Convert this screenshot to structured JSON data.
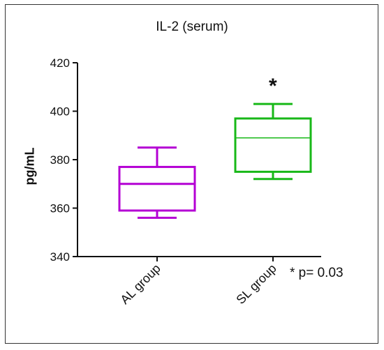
{
  "title": "IL-2 (serum)",
  "chart_data": {
    "type": "box",
    "title": "IL-2 (serum)",
    "ylabel": "pg/mL",
    "xlabel": "",
    "ylim": [
      340,
      420
    ],
    "yticks": [
      340,
      360,
      380,
      400,
      420
    ],
    "categories": [
      "AL group",
      "SL group"
    ],
    "boxes": [
      {
        "category": "AL group",
        "min": 356,
        "q1": 359,
        "median": 370,
        "q3": 377,
        "max": 385,
        "color": "#b400d4"
      },
      {
        "category": "SL group",
        "min": 372,
        "q1": 375,
        "median": 389,
        "q3": 397,
        "max": 403,
        "color": "#18b818"
      }
    ],
    "annotations": {
      "significance_marker": "*",
      "significance_on": "SL group",
      "p_value_note": "* p= 0.03"
    },
    "grid": false,
    "legend": "none"
  }
}
